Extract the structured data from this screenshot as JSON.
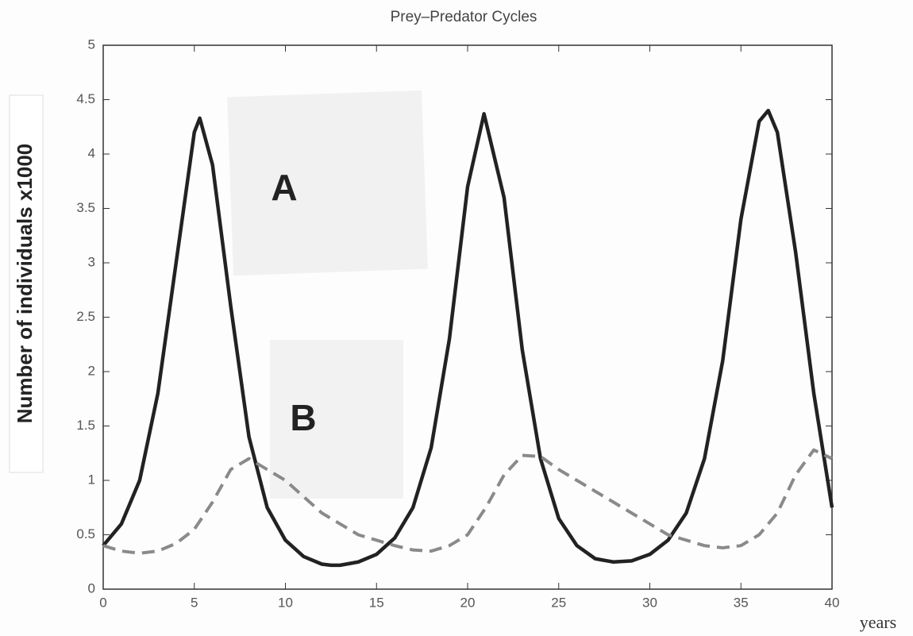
{
  "chart_data": {
    "type": "line",
    "title": "Prey–Predator Cycles",
    "ylabel": "Number of individuals x1000",
    "xlabel": "years",
    "series": [
      {
        "name": "A",
        "color": "#222222",
        "dash": false,
        "x": [
          0,
          1,
          2,
          3,
          4,
          5,
          5.3,
          6,
          7,
          8,
          9,
          10,
          11,
          12,
          12.5,
          13,
          14,
          15,
          16,
          17,
          18,
          19,
          20,
          20.9,
          22,
          23,
          24,
          25,
          26,
          27,
          28,
          29,
          30,
          31,
          32,
          33,
          34,
          35,
          36,
          36.5,
          37,
          38,
          39,
          40
        ],
        "values": [
          0.4,
          0.6,
          1.0,
          1.8,
          3.0,
          4.2,
          4.33,
          3.9,
          2.6,
          1.4,
          0.75,
          0.45,
          0.3,
          0.23,
          0.22,
          0.22,
          0.25,
          0.32,
          0.47,
          0.75,
          1.3,
          2.3,
          3.7,
          4.37,
          3.6,
          2.2,
          1.2,
          0.65,
          0.4,
          0.28,
          0.25,
          0.26,
          0.32,
          0.45,
          0.7,
          1.2,
          2.1,
          3.4,
          4.3,
          4.4,
          4.2,
          3.1,
          1.8,
          0.75
        ]
      },
      {
        "name": "B",
        "color": "#8a8a8a",
        "dash": true,
        "x": [
          0,
          1,
          2,
          3,
          4,
          5,
          6,
          7,
          8,
          9,
          10,
          11,
          12,
          13,
          14,
          15,
          16,
          17,
          18,
          19,
          20,
          21,
          22,
          23,
          24,
          25,
          26,
          27,
          28,
          29,
          30,
          31,
          32,
          33,
          34,
          35,
          36,
          37,
          38,
          39,
          40
        ],
        "values": [
          0.4,
          0.35,
          0.33,
          0.35,
          0.42,
          0.55,
          0.8,
          1.1,
          1.2,
          1.1,
          1.0,
          0.85,
          0.7,
          0.6,
          0.5,
          0.45,
          0.4,
          0.36,
          0.35,
          0.4,
          0.5,
          0.75,
          1.05,
          1.23,
          1.22,
          1.1,
          1.0,
          0.9,
          0.8,
          0.7,
          0.6,
          0.5,
          0.45,
          0.4,
          0.38,
          0.4,
          0.5,
          0.7,
          1.05,
          1.28,
          1.2
        ]
      }
    ],
    "xlim": [
      0,
      40
    ],
    "xticks": [
      0,
      5,
      10,
      15,
      20,
      25,
      30,
      35,
      40
    ],
    "ylim": [
      0,
      5
    ],
    "yticks": [
      0,
      0.5,
      1,
      1.5,
      2,
      2.5,
      3,
      3.5,
      4,
      4.5,
      5
    ]
  }
}
